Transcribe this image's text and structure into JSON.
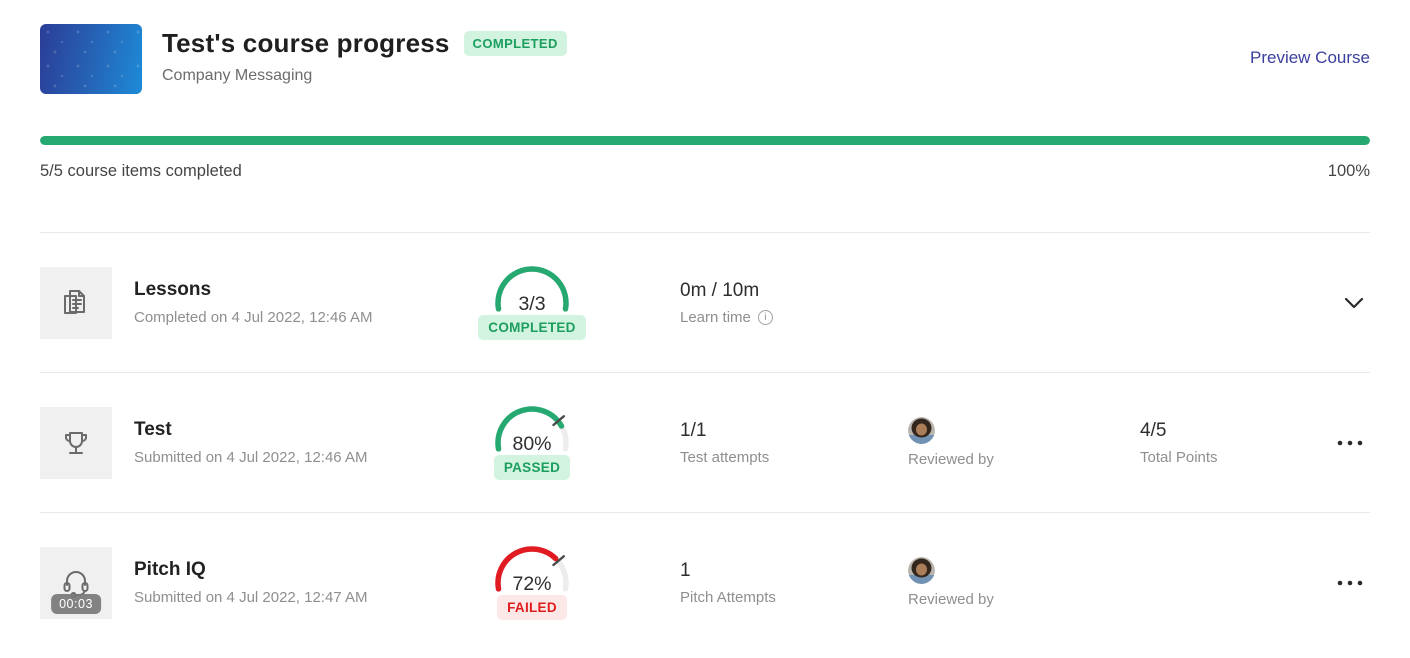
{
  "header": {
    "title": "Test's course progress",
    "status_badge": "COMPLETED",
    "subtitle": "Company Messaging",
    "preview_link": "Preview Course"
  },
  "progress": {
    "percent": 100,
    "items_text": "5/5 course items completed",
    "percent_text": "100%"
  },
  "colors": {
    "green": "#26a871",
    "green_badge_bg": "#d2f3df",
    "green_badge_text": "#1c9e5e",
    "red": "#e11b22",
    "red_badge_bg": "#fce9e7",
    "red_badge_text": "#de1d1d",
    "link": "#3b3f9d"
  },
  "rows": [
    {
      "icon": "documents-icon",
      "title": "Lessons",
      "subtitle": "Completed on 4 Jul 2022, 12:46 AM",
      "gauge": {
        "label": "3/3",
        "fraction": 1,
        "threshold": null,
        "color": "#26a871"
      },
      "badge": "COMPLETED",
      "stat1": {
        "value": "0m / 10m",
        "label": "Learn time",
        "info_icon": "info-icon"
      },
      "action": "chevron-down"
    },
    {
      "icon": "trophy-icon",
      "title": "Test",
      "subtitle": "Submitted on 4 Jul 2022, 12:46 AM",
      "gauge": {
        "label": "80%",
        "fraction": 0.8,
        "threshold": 0.75,
        "color": "#26a871"
      },
      "badge": "PASSED",
      "stat1": {
        "value": "1/1",
        "label": "Test attempts"
      },
      "stat2": {
        "label": "Reviewed by",
        "avatar": "reviewer-avatar"
      },
      "stat3": {
        "value": "4/5",
        "label": "Total Points"
      },
      "action": "more-options"
    },
    {
      "icon": "headset-icon",
      "timer_badge": "00:03",
      "title": "Pitch IQ",
      "subtitle": "Submitted on 4 Jul 2022, 12:47 AM",
      "gauge": {
        "label": "72%",
        "fraction": 0.72,
        "threshold": 0.75,
        "color": "#e11b22"
      },
      "badge": "FAILED",
      "stat1": {
        "value": "1",
        "label": "Pitch Attempts"
      },
      "stat2": {
        "label": "Reviewed by",
        "avatar": "reviewer-avatar"
      },
      "action": "more-options"
    }
  ]
}
